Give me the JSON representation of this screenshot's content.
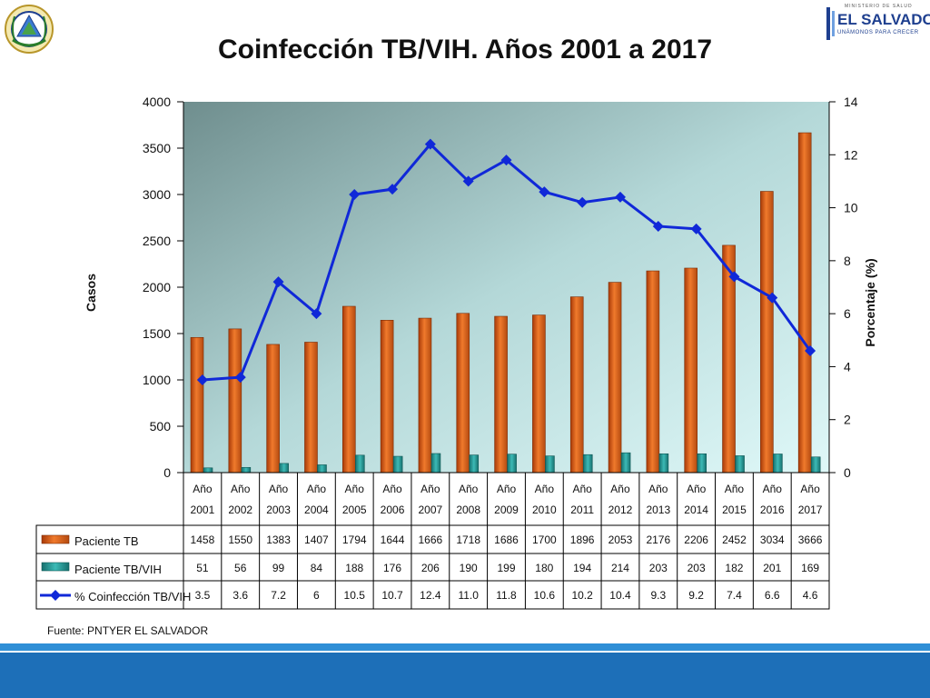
{
  "header": {
    "title": "Coinfección TB/VIH. Años 2001 a 2017",
    "logo_right": {
      "line1": "MINISTERIO DE SALUD",
      "line2": "EL SALVADOR",
      "line3": "UNÁMONOS PARA CRECER"
    }
  },
  "footer": {
    "source": "Fuente: PNTYER EL SALVADOR"
  },
  "colors": {
    "bar_tb": "#e8641c",
    "bar_vih": "#2a9d9a",
    "line": "#1028d8"
  },
  "chart_data": {
    "type": "bar",
    "title": "Coinfección TB/VIH. Años 2001 a 2017",
    "ylabel": "Casos",
    "ylabel_right": "Porcentaje (%)",
    "ylim": [
      0,
      4000
    ],
    "ylim_right": [
      0,
      14
    ],
    "yticks": [
      "0",
      "500",
      "1000",
      "1500",
      "2000",
      "2500",
      "3000",
      "3500",
      "4000"
    ],
    "yticks_right": [
      "0",
      "2",
      "4",
      "6",
      "8",
      "10",
      "12",
      "14"
    ],
    "categories": [
      {
        "l1": "Año",
        "l2": "2001"
      },
      {
        "l1": "Año",
        "l2": "2002"
      },
      {
        "l1": "Año",
        "l2": "2003"
      },
      {
        "l1": "Año",
        "l2": "2004"
      },
      {
        "l1": "Año",
        "l2": "2005"
      },
      {
        "l1": "Año",
        "l2": "2006"
      },
      {
        "l1": "Año",
        "l2": "2007"
      },
      {
        "l1": "Año",
        "l2": "2008"
      },
      {
        "l1": "Año",
        "l2": "2009"
      },
      {
        "l1": "Año",
        "l2": "2010"
      },
      {
        "l1": "Año",
        "l2": "2011"
      },
      {
        "l1": "Año",
        "l2": "2012"
      },
      {
        "l1": "Año",
        "l2": "2013"
      },
      {
        "l1": "Año",
        "l2": "2014"
      },
      {
        "l1": "Año",
        "l2": "2015"
      },
      {
        "l1": "Año",
        "l2": "2016"
      },
      {
        "l1": "Año",
        "l2": "2017"
      }
    ],
    "series": [
      {
        "name": "Paciente TB",
        "kind": "bar",
        "values": [
          1458,
          1550,
          1383,
          1407,
          1794,
          1644,
          1666,
          1718,
          1686,
          1700,
          1896,
          2053,
          2176,
          2206,
          2452,
          3034,
          3666
        ],
        "labels": [
          "1458",
          "1550",
          "1383",
          "1407",
          "1794",
          "1644",
          "1666",
          "1718",
          "1686",
          "1700",
          "1896",
          "2053",
          "2176",
          "2206",
          "2452",
          "3034",
          "3666"
        ]
      },
      {
        "name": "Paciente TB/VIH",
        "kind": "bar",
        "values": [
          51,
          56,
          99,
          84,
          188,
          176,
          206,
          190,
          199,
          180,
          194,
          214,
          203,
          203,
          182,
          201,
          169
        ],
        "labels": [
          "51",
          "56",
          "99",
          "84",
          "188",
          "176",
          "206",
          "190",
          "199",
          "180",
          "194",
          "214",
          "203",
          "203",
          "182",
          "201",
          "169"
        ]
      },
      {
        "name": "% Coinfección TB/VIH",
        "kind": "line",
        "axis": "right",
        "values": [
          3.5,
          3.6,
          7.2,
          6,
          10.5,
          10.7,
          12.4,
          11.0,
          11.8,
          10.6,
          10.2,
          10.4,
          9.3,
          9.2,
          7.4,
          6.6,
          4.6
        ],
        "labels": [
          "3.5",
          "3.6",
          "7.2",
          "6",
          "10.5",
          "10.7",
          "12.4",
          "11.0",
          "11.8",
          "10.6",
          "10.2",
          "10.4",
          "9.3",
          "9.2",
          "7.4",
          "6.6",
          "4.6"
        ]
      }
    ],
    "legend": "table-below",
    "grid": false
  }
}
